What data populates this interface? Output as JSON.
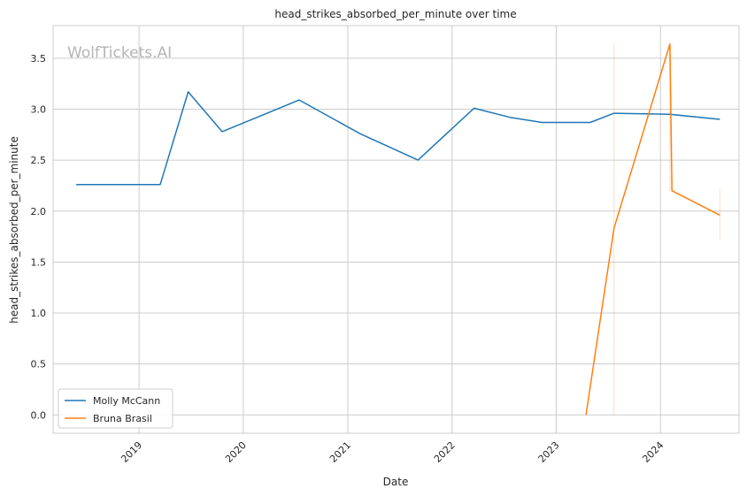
{
  "chart_data": {
    "type": "line",
    "title": "head_strikes_absorbed_per_minute over time",
    "xlabel": "Date",
    "ylabel": "head_strikes_absorbed_per_minute",
    "watermark": "WolfTickets.AI",
    "xlim": [
      "2018-03-06",
      "2024-10-02"
    ],
    "ylim": [
      -0.18,
      3.82
    ],
    "x_ticks": [
      "2019",
      "2020",
      "2021",
      "2022",
      "2023",
      "2024"
    ],
    "y_ticks": [
      "0.0",
      "0.5",
      "1.0",
      "1.5",
      "2.0",
      "2.5",
      "3.0",
      "3.5"
    ],
    "grid": true,
    "legend_position": "lower-left",
    "series": [
      {
        "name": "Molly McCann",
        "color": "#1f77b4",
        "points": [
          {
            "x": "2018-05-26",
            "y": 2.26
          },
          {
            "x": "2019-03-16",
            "y": 2.26
          },
          {
            "x": "2019-06-22",
            "y": 3.17
          },
          {
            "x": "2019-10-19",
            "y": 2.78
          },
          {
            "x": "2020-07-15",
            "y": 3.09
          },
          {
            "x": "2021-02-13",
            "y": 2.76
          },
          {
            "x": "2021-09-04",
            "y": 2.5
          },
          {
            "x": "2022-03-19",
            "y": 3.01
          },
          {
            "x": "2022-07-23",
            "y": 2.92
          },
          {
            "x": "2022-11-12",
            "y": 2.87
          },
          {
            "x": "2023-04-30",
            "y": 2.87
          },
          {
            "x": "2023-07-22",
            "y": 2.96
          },
          {
            "x": "2024-02-03",
            "y": 2.95
          },
          {
            "x": "2024-07-27",
            "y": 2.9
          }
        ]
      },
      {
        "name": "Bruna Brasil",
        "color": "#ff7f0e",
        "points": [
          {
            "x": "2023-04-15",
            "y": 0.0
          },
          {
            "x": "2023-07-22",
            "y": 1.83
          },
          {
            "x": "2024-02-03",
            "y": 3.64
          },
          {
            "x": "2024-02-10",
            "y": 2.2
          },
          {
            "x": "2024-07-27",
            "y": 1.96
          }
        ],
        "error_bands": [
          {
            "x": "2023-07-22",
            "low": 0.0,
            "high": 3.64
          },
          {
            "x": "2024-02-03",
            "low": 2.2,
            "high": 3.64
          },
          {
            "x": "2024-07-27",
            "low": 1.72,
            "high": 2.22
          }
        ]
      }
    ]
  }
}
